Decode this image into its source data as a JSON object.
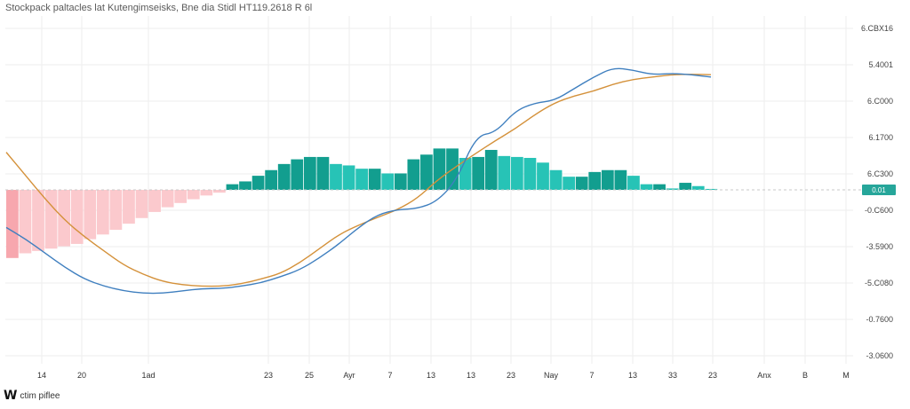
{
  "header": {
    "title": "Stockpack paltacles lat Kutengimseisks, Bne dia Stidl HT119.2618 R 6l"
  },
  "footer": {
    "logo_text": "W",
    "brand_text": "ctim piflee"
  },
  "colors": {
    "macd_line": "#3f7fbf",
    "signal_line": "#d4913a",
    "hist_pos_strong": "#129e8f",
    "hist_pos_light": "#27c3b6",
    "hist_neg_strong": "#f7a7ae",
    "hist_neg_light": "#fbc9cd",
    "zero_line": "#c8c8c8",
    "grid": "#ededed",
    "label_badge": "#26a69a"
  },
  "chart_data": {
    "type": "bar",
    "title": "",
    "grid": true,
    "legend": "none",
    "x_tick_labels": [
      "14",
      "20",
      "1ad",
      "23",
      "25",
      "Ayr",
      "7",
      "13",
      "13",
      "23",
      "Nay",
      "7",
      "13",
      "33",
      "23",
      "Anx",
      "B",
      "M"
    ],
    "y_tick_labels": [
      "6.CBX16",
      "5.4001",
      "6.C000",
      "6.1700",
      "6.C300",
      "-0.C600",
      "-3.5900",
      "-5.C080",
      "-0.7600",
      "-3.0600"
    ],
    "last_value_label": "0.01",
    "ylim": [
      -3.7,
      3.7
    ],
    "series": [
      {
        "type": "bar",
        "values": [
          -1.45,
          -1.35,
          -1.3,
          -1.25,
          -1.2,
          -1.15,
          -1.05,
          -0.95,
          -0.85,
          -0.72,
          -0.6,
          -0.47,
          -0.37,
          -0.28,
          -0.2,
          -0.12,
          -0.06,
          0.12,
          0.18,
          0.3,
          0.42,
          0.55,
          0.65,
          0.7,
          0.7,
          0.55,
          0.52,
          0.45,
          0.45,
          0.35,
          0.35,
          0.65,
          0.75,
          0.88,
          0.88,
          0.68,
          0.7,
          0.85,
          0.72,
          0.7,
          0.68,
          0.58,
          0.42,
          0.28,
          0.28,
          0.38,
          0.42,
          0.42,
          0.3,
          0.12,
          0.12,
          0.03,
          0.15,
          0.08,
          0.02
        ]
      },
      {
        "type": "line",
        "values": [
          -0.8,
          -1.05,
          -1.35,
          -1.65,
          -1.9,
          -2.05,
          -2.15,
          -2.2,
          -2.2,
          -2.15,
          -2.1,
          -2.1,
          -2.05,
          -1.98,
          -1.85,
          -1.7,
          -1.45,
          -1.15,
          -0.8,
          -0.52,
          -0.42,
          -0.4,
          -0.25,
          0.2,
          1.15,
          1.22,
          1.68,
          1.85,
          1.9,
          2.15,
          2.4,
          2.6,
          2.55,
          2.45,
          2.48,
          2.45,
          2.4
        ]
      },
      {
        "type": "line",
        "values": [
          0.8,
          0.3,
          -0.2,
          -0.65,
          -1.0,
          -1.3,
          -1.6,
          -1.8,
          -1.95,
          -2.02,
          -2.05,
          -2.05,
          -2.0,
          -1.9,
          -1.78,
          -1.55,
          -1.25,
          -0.95,
          -0.75,
          -0.58,
          -0.42,
          -0.18,
          0.2,
          0.5,
          0.78,
          1.05,
          1.3,
          1.6,
          1.85,
          2.0,
          2.1,
          2.25,
          2.35,
          2.4,
          2.45,
          2.46,
          2.45
        ]
      }
    ]
  }
}
